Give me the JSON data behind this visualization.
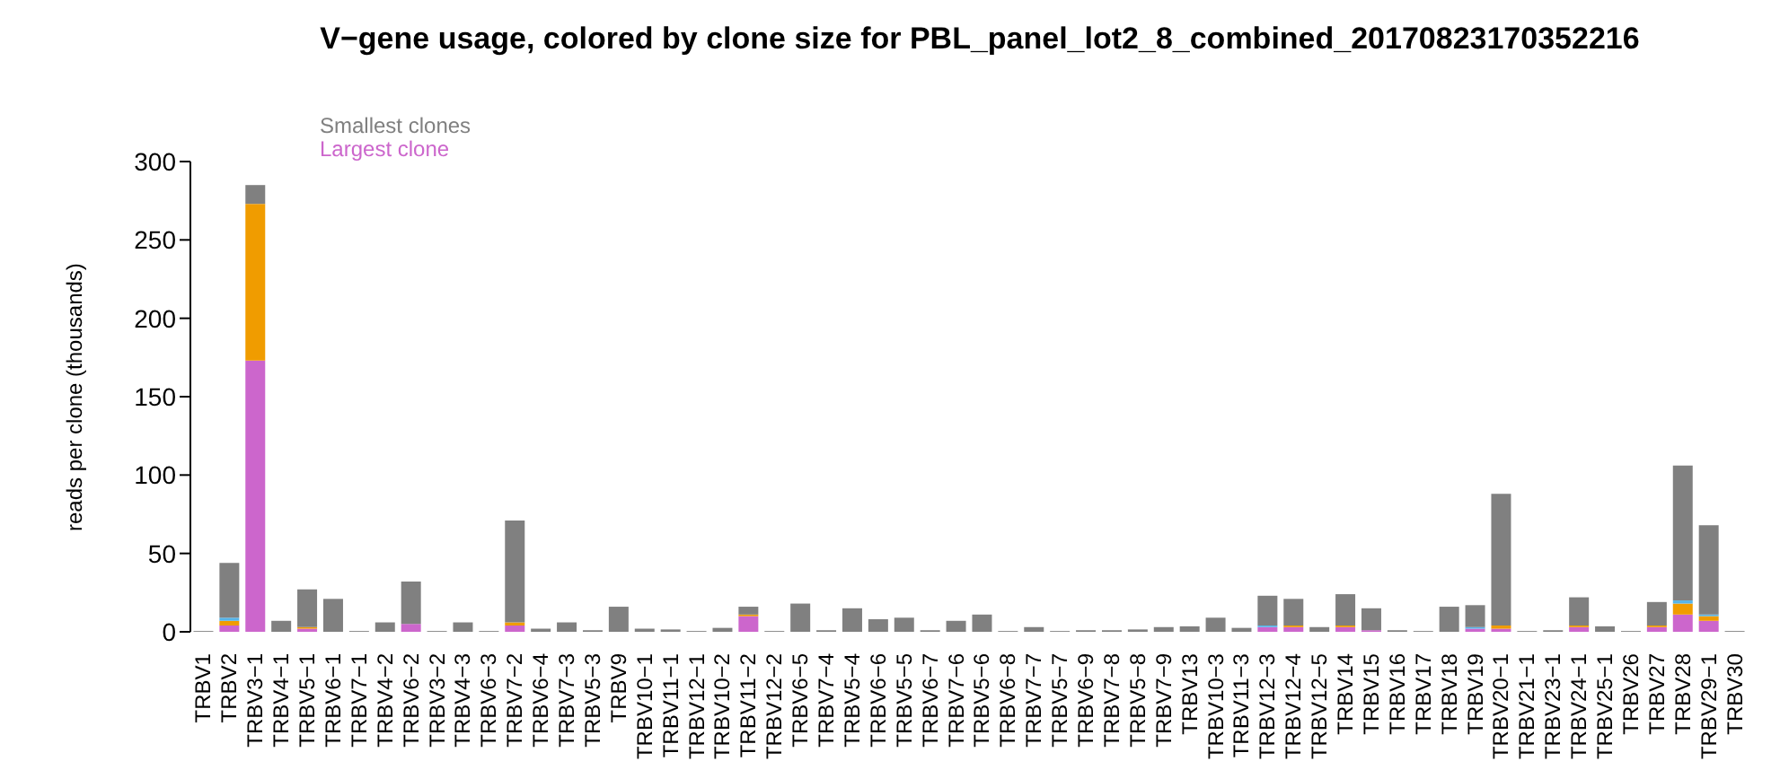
{
  "chart_data": {
    "type": "bar",
    "stacked": true,
    "title": "V−gene usage, colored by clone size for PBL_panel_lot2_8_combined_20170823170352216",
    "ylabel": "reads per clone (thousands)",
    "legend": "top left",
    "grid": false,
    "ylim": [
      0,
      300
    ],
    "yticks": [
      0,
      50,
      100,
      150,
      200,
      250,
      300
    ],
    "categories": [
      "TRBV1",
      "TRBV2",
      "TRBV3−1",
      "TRBV4−1",
      "TRBV5−1",
      "TRBV6−1",
      "TRBV7−1",
      "TRBV4−2",
      "TRBV6−2",
      "TRBV3−2",
      "TRBV4−3",
      "TRBV6−3",
      "TRBV7−2",
      "TRBV6−4",
      "TRBV7−3",
      "TRBV5−3",
      "TRBV9",
      "TRBV10−1",
      "TRBV11−1",
      "TRBV12−1",
      "TRBV10−2",
      "TRBV11−2",
      "TRBV12−2",
      "TRBV6−5",
      "TRBV7−4",
      "TRBV5−4",
      "TRBV6−6",
      "TRBV5−5",
      "TRBV6−7",
      "TRBV7−6",
      "TRBV5−6",
      "TRBV6−8",
      "TRBV7−7",
      "TRBV5−7",
      "TRBV6−9",
      "TRBV7−8",
      "TRBV5−8",
      "TRBV7−9",
      "TRBV13",
      "TRBV10−3",
      "TRBV11−3",
      "TRBV12−3",
      "TRBV12−4",
      "TRBV12−5",
      "TRBV14",
      "TRBV15",
      "TRBV16",
      "TRBV17",
      "TRBV18",
      "TRBV19",
      "TRBV20−1",
      "TRBV21−1",
      "TRBV23−1",
      "TRBV24−1",
      "TRBV25−1",
      "TRBV26",
      "TRBV27",
      "TRBV28",
      "TRBV29−1",
      "TRBV30"
    ],
    "series": [
      {
        "name": "Largest clone",
        "color": "#cc66cc",
        "values": [
          0,
          4,
          173,
          0,
          2,
          0,
          0,
          0,
          5,
          0,
          0,
          0,
          4,
          0,
          0,
          0,
          0,
          0,
          0,
          0,
          0,
          10,
          0,
          0,
          0,
          0,
          0,
          0,
          0,
          0,
          0,
          0,
          0,
          0,
          0,
          0,
          0,
          0,
          0,
          0,
          0,
          3,
          3,
          0,
          3,
          1,
          0,
          0,
          0,
          2,
          2,
          0,
          0,
          3,
          0,
          0,
          3,
          11,
          7,
          0
        ]
      },
      {
        "color": "#f09c00",
        "values": [
          0,
          3,
          100,
          0,
          1,
          0,
          0,
          0,
          0,
          0,
          0,
          0,
          2,
          0,
          0,
          0,
          0,
          0,
          0,
          0,
          0,
          1,
          0,
          0,
          0,
          0,
          0,
          0,
          0,
          0,
          0,
          0,
          0,
          0,
          0,
          0,
          0,
          0,
          0,
          0,
          0,
          0,
          1,
          0,
          1,
          0,
          0,
          0,
          0,
          0,
          2,
          0,
          0,
          1,
          0,
          0,
          1,
          7,
          3,
          0
        ]
      },
      {
        "color": "#56b4e9",
        "values": [
          0,
          2,
          0,
          0,
          0,
          0,
          0,
          0,
          0,
          0,
          0,
          0,
          0,
          0,
          0,
          0,
          0,
          0,
          0,
          0,
          0,
          0,
          0,
          0,
          0,
          0,
          0,
          0,
          0,
          0,
          0,
          0,
          0,
          0,
          0,
          0,
          0,
          0,
          0,
          0,
          0,
          1,
          0,
          0,
          0,
          0,
          0,
          0,
          0,
          1,
          0,
          0,
          0,
          0,
          0,
          0,
          0,
          2,
          1,
          0
        ]
      },
      {
        "name": "Smallest clones",
        "color": "#808080",
        "values": [
          0.5,
          35,
          12,
          7,
          24,
          21,
          0.5,
          6,
          27,
          0.5,
          6,
          0.5,
          65,
          2,
          6,
          1,
          16,
          2,
          1.5,
          0.5,
          2.5,
          5,
          0.5,
          18,
          1,
          15,
          8,
          9,
          1,
          7,
          11,
          0.5,
          3,
          0.5,
          1,
          1,
          1.5,
          3,
          3.5,
          9,
          2.5,
          19,
          17,
          3,
          20,
          14,
          1,
          0.5,
          16,
          14,
          84,
          0.5,
          1,
          18,
          3.5,
          0.5,
          15,
          86,
          57,
          0.5
        ]
      }
    ]
  }
}
